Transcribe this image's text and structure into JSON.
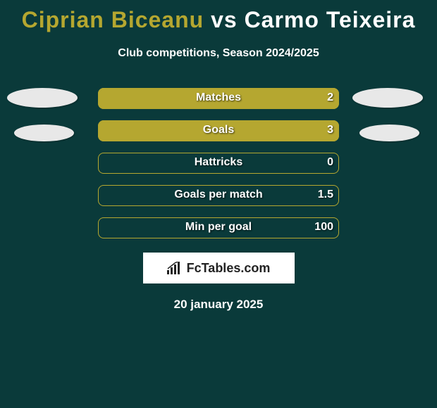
{
  "title": {
    "player1": "Ciprian Biceanu",
    "vs": "vs",
    "player2": "Carmo Teixeira",
    "player1_color": "#b5a730",
    "player2_color": "#ffffff"
  },
  "subtitle": "Club competitions, Season 2024/2025",
  "background_color": "#0a3a3a",
  "bar_color": "#b5a730",
  "bar_border_color": "#b5a730",
  "text_color": "#ffffff",
  "ellipse_color": "#e8e8e8",
  "chart": {
    "type": "horizontal-bar-comparison",
    "container_width": 342,
    "rows": [
      {
        "label": "Matches",
        "value": "2",
        "fill_pct": 100
      },
      {
        "label": "Goals",
        "value": "3",
        "fill_pct": 100
      },
      {
        "label": "Hattricks",
        "value": "0",
        "fill_pct": 0
      },
      {
        "label": "Goals per match",
        "value": "1.5",
        "fill_pct": 0
      },
      {
        "label": "Min per goal",
        "value": "100",
        "fill_pct": 0
      }
    ]
  },
  "logo": {
    "text": "FcTables.com",
    "bg_color": "#ffffff",
    "text_color": "#222222"
  },
  "date": "20 january 2025"
}
